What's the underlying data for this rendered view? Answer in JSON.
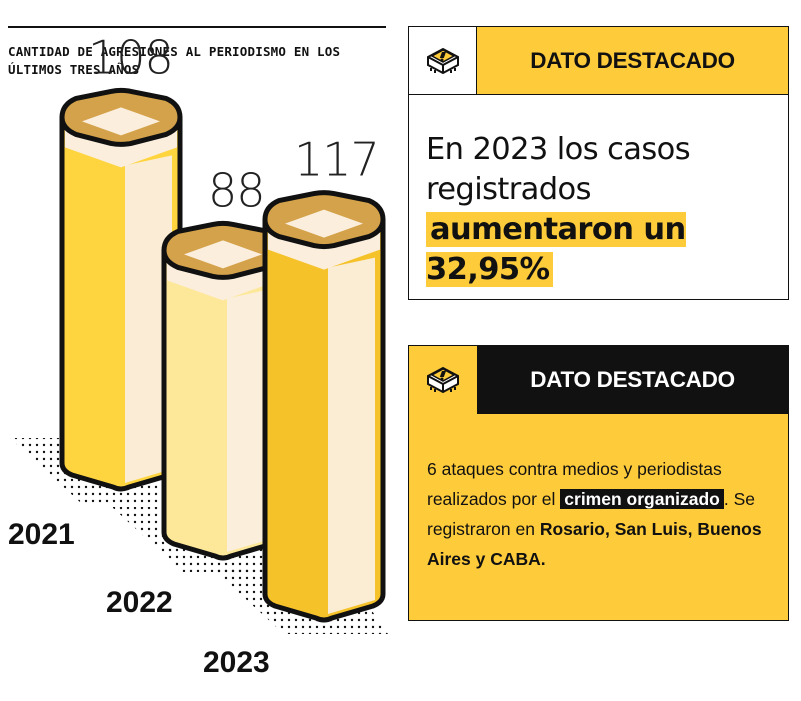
{
  "chart_data": {
    "type": "bar",
    "title": "CANTIDAD DE AGRESIONES AL PERIODISMO EN LOS ÚLTIMOS TRES AÑOS",
    "categories": [
      "2021",
      "2022",
      "2023"
    ],
    "values": [
      108,
      88,
      117
    ],
    "value_labels": [
      "108",
      "88",
      "117"
    ],
    "style": "isometric 3D columns",
    "colors": [
      "#fed43f",
      "#fde89a",
      "#f5c229"
    ]
  },
  "card1": {
    "header": "DATO DESTACADO",
    "icon": "alert-chip-icon",
    "text_part1": "En 2023 los casos registrados ",
    "text_highlight": "aumentaron un 32,95%"
  },
  "card2": {
    "header": "DATO DESTACADO",
    "icon": "alert-chip-icon",
    "text_part1": "6 ataques contra medios y periodistas realizados por el ",
    "text_highlight": "crimen organizado",
    "text_part2": ". Se registraron en ",
    "text_bold": "Rosario, San Luis, Buenos Aires y CABA."
  },
  "colors": {
    "accent_yellow": "#fecb3a",
    "dark": "#111111",
    "cream": "#fbeedd",
    "rim": "#d4a24a"
  }
}
